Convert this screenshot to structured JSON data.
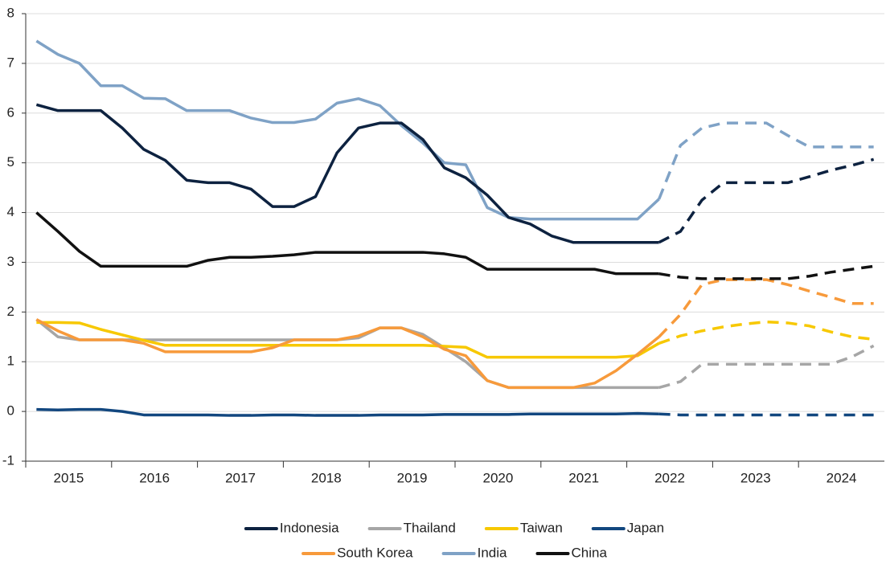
{
  "chart_data": {
    "type": "line",
    "x": [
      2015.125,
      2015.375,
      2015.625,
      2015.875,
      2016.125,
      2016.375,
      2016.625,
      2016.875,
      2017.125,
      2017.375,
      2017.625,
      2017.875,
      2018.125,
      2018.375,
      2018.625,
      2018.875,
      2019.125,
      2019.375,
      2019.625,
      2019.875,
      2020.125,
      2020.375,
      2020.625,
      2020.875,
      2021.125,
      2021.375,
      2021.625,
      2021.875,
      2022.125,
      2022.375,
      2022.625,
      2022.875,
      2023.125,
      2023.375,
      2023.625,
      2023.875,
      2024.125,
      2024.375,
      2024.625,
      2024.875
    ],
    "xlim": [
      2015,
      2025
    ],
    "xticks": [
      {
        "value": 2015.5,
        "label": "2015"
      },
      {
        "value": 2016.5,
        "label": "2016"
      },
      {
        "value": 2017.5,
        "label": "2017"
      },
      {
        "value": 2018.5,
        "label": "2018"
      },
      {
        "value": 2019.5,
        "label": "2019"
      },
      {
        "value": 2020.5,
        "label": "2020"
      },
      {
        "value": 2021.5,
        "label": "2021"
      },
      {
        "value": 2022.5,
        "label": "2022"
      },
      {
        "value": 2023.5,
        "label": "2023"
      },
      {
        "value": 2024.5,
        "label": "2024"
      }
    ],
    "ylim": [
      -1,
      8
    ],
    "yticks": [
      -1,
      0,
      1,
      2,
      3,
      4,
      5,
      6,
      7,
      8
    ],
    "grid": true,
    "dashed_from_x": 2022.375,
    "legend": "bottom",
    "series": [
      {
        "name": "Indonesia",
        "color": "#0d2240",
        "values": [
          6.17,
          6.05,
          6.05,
          6.05,
          5.7,
          5.27,
          5.05,
          4.65,
          4.6,
          4.6,
          4.47,
          4.12,
          4.12,
          4.32,
          5.2,
          5.7,
          5.8,
          5.8,
          5.47,
          4.9,
          4.7,
          4.35,
          3.9,
          3.77,
          3.53,
          3.4,
          3.4,
          3.4,
          3.4,
          3.4,
          3.62,
          4.25,
          4.6,
          4.6,
          4.6,
          4.6,
          4.72,
          4.85,
          4.95,
          5.07
        ]
      },
      {
        "name": "Thailand",
        "color": "#a6a6a6",
        "values": [
          1.85,
          1.5,
          1.44,
          1.44,
          1.44,
          1.44,
          1.44,
          1.44,
          1.44,
          1.44,
          1.44,
          1.44,
          1.44,
          1.44,
          1.44,
          1.48,
          1.68,
          1.68,
          1.55,
          1.28,
          1.0,
          0.62,
          0.48,
          0.48,
          0.48,
          0.48,
          0.48,
          0.48,
          0.48,
          0.48,
          0.6,
          0.95,
          0.95,
          0.95,
          0.95,
          0.95,
          0.95,
          0.95,
          1.1,
          1.32
        ]
      },
      {
        "name": "Taiwan",
        "color": "#f7c800",
        "values": [
          1.79,
          1.79,
          1.78,
          1.65,
          1.54,
          1.43,
          1.33,
          1.33,
          1.33,
          1.33,
          1.33,
          1.33,
          1.33,
          1.33,
          1.33,
          1.33,
          1.33,
          1.33,
          1.33,
          1.31,
          1.29,
          1.09,
          1.09,
          1.09,
          1.09,
          1.09,
          1.09,
          1.09,
          1.12,
          1.37,
          1.52,
          1.62,
          1.7,
          1.76,
          1.8,
          1.78,
          1.72,
          1.6,
          1.5,
          1.45
        ]
      },
      {
        "name": "Japan",
        "color": "#12477f",
        "values": [
          0.04,
          0.03,
          0.04,
          0.04,
          0.0,
          -0.07,
          -0.07,
          -0.07,
          -0.07,
          -0.08,
          -0.08,
          -0.07,
          -0.07,
          -0.08,
          -0.08,
          -0.08,
          -0.07,
          -0.07,
          -0.07,
          -0.06,
          -0.06,
          -0.06,
          -0.06,
          -0.05,
          -0.05,
          -0.05,
          -0.05,
          -0.05,
          -0.04,
          -0.05,
          -0.07,
          -0.07,
          -0.07,
          -0.07,
          -0.07,
          -0.07,
          -0.07,
          -0.07,
          -0.07,
          -0.07
        ]
      },
      {
        "name": "South Korea",
        "color": "#f79a3b",
        "values": [
          1.85,
          1.62,
          1.44,
          1.44,
          1.44,
          1.37,
          1.2,
          1.2,
          1.2,
          1.2,
          1.2,
          1.28,
          1.44,
          1.44,
          1.44,
          1.52,
          1.68,
          1.68,
          1.5,
          1.25,
          1.12,
          0.62,
          0.48,
          0.48,
          0.48,
          0.48,
          0.57,
          0.82,
          1.15,
          1.5,
          1.95,
          2.55,
          2.65,
          2.65,
          2.65,
          2.55,
          2.42,
          2.3,
          2.17,
          2.17
        ]
      },
      {
        "name": "India",
        "color": "#7fa2c6",
        "values": [
          7.45,
          7.18,
          7.0,
          6.55,
          6.55,
          6.3,
          6.29,
          6.05,
          6.05,
          6.05,
          5.9,
          5.81,
          5.81,
          5.88,
          6.2,
          6.29,
          6.15,
          5.75,
          5.4,
          5.0,
          4.96,
          4.1,
          3.9,
          3.87,
          3.87,
          3.87,
          3.87,
          3.87,
          3.87,
          4.27,
          5.35,
          5.7,
          5.8,
          5.8,
          5.8,
          5.55,
          5.32,
          5.32,
          5.32,
          5.32
        ]
      },
      {
        "name": "China",
        "color": "#111111",
        "values": [
          4.0,
          3.62,
          3.22,
          2.92,
          2.92,
          2.92,
          2.92,
          2.92,
          3.04,
          3.1,
          3.1,
          3.12,
          3.15,
          3.2,
          3.2,
          3.2,
          3.2,
          3.2,
          3.2,
          3.17,
          3.1,
          2.86,
          2.86,
          2.86,
          2.86,
          2.86,
          2.86,
          2.77,
          2.77,
          2.77,
          2.7,
          2.67,
          2.67,
          2.67,
          2.67,
          2.67,
          2.72,
          2.8,
          2.86,
          2.92
        ]
      }
    ]
  }
}
